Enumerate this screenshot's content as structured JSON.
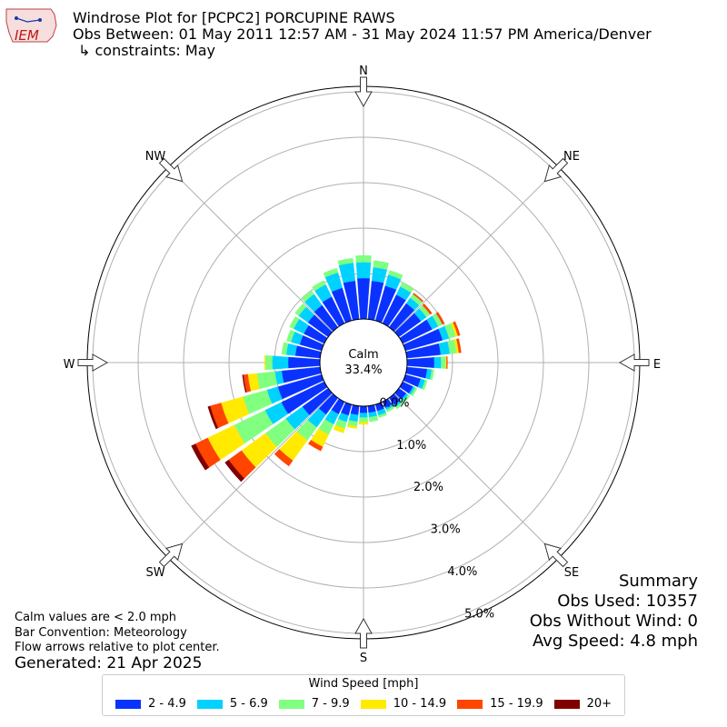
{
  "header": {
    "logo_text": "IEM",
    "title": "Windrose Plot for [PCPC2] PORCUPINE RAWS",
    "subtitle": "Obs Between: 01 May 2011 12:57 AM - 31 May 2024 11:57 PM America/Denver",
    "constraints": "↳ constraints: May"
  },
  "calm": {
    "label": "Calm",
    "value": "33.4%"
  },
  "notes": {
    "calm_def": "Calm values are < 2.0 mph",
    "bar_convention": "Bar Convention: Meteorology",
    "flow_arrows": "Flow arrows relative to plot center.",
    "generated": "Generated: 21 Apr 2025"
  },
  "summary": {
    "title": "Summary",
    "obs_used": "Obs Used: 10357",
    "obs_without_wind": "Obs Without Wind: 0",
    "avg_speed": "Avg Speed: 4.8 mph"
  },
  "legend": {
    "title": "Wind Speed [mph]",
    "items": [
      {
        "label": "2 - 4.9",
        "color": "#0a32ff"
      },
      {
        "label": "5 - 6.9",
        "color": "#00d2ff"
      },
      {
        "label": "7 - 9.9",
        "color": "#80ff80"
      },
      {
        "label": "10 - 14.9",
        "color": "#ffea00"
      },
      {
        "label": "15 - 19.9",
        "color": "#ff4500"
      },
      {
        "label": "20+",
        "color": "#800000"
      }
    ]
  },
  "chart_data": {
    "type": "windrose",
    "directions_deg": [
      0,
      10,
      20,
      30,
      40,
      50,
      60,
      70,
      80,
      90,
      100,
      110,
      120,
      130,
      140,
      150,
      160,
      170,
      180,
      190,
      200,
      210,
      220,
      230,
      240,
      250,
      260,
      270,
      280,
      290,
      300,
      310,
      320,
      330,
      340,
      350
    ],
    "compass_labels": [
      "N",
      "NE",
      "E",
      "SE",
      "S",
      "SW",
      "W",
      "NW"
    ],
    "radial_tick_labels": [
      "0.0%",
      "1.0%",
      "2.0%",
      "3.0%",
      "4.0%",
      "5.0%"
    ],
    "radial_max_percent": 5.0,
    "calm_percent": 33.4,
    "series": [
      {
        "name": "2 - 4.9",
        "values": [
          0.9,
          0.85,
          0.8,
          0.7,
          0.65,
          0.6,
          0.72,
          0.85,
          0.75,
          0.6,
          0.45,
          0.35,
          0.25,
          0.2,
          0.2,
          0.15,
          0.15,
          0.15,
          0.15,
          0.2,
          0.25,
          0.3,
          0.45,
          0.7,
          1.05,
          1.0,
          0.85,
          0.7,
          0.55,
          0.5,
          0.5,
          0.55,
          0.6,
          0.65,
          0.75,
          0.85
        ]
      },
      {
        "name": "5 - 6.9",
        "values": [
          0.35,
          0.3,
          0.25,
          0.2,
          0.15,
          0.15,
          0.15,
          0.15,
          0.2,
          0.15,
          0.1,
          0.1,
          0.05,
          0.05,
          0.05,
          0.05,
          0.1,
          0.1,
          0.1,
          0.15,
          0.15,
          0.25,
          0.35,
          0.45,
          0.4,
          0.25,
          0.15,
          0.35,
          0.2,
          0.2,
          0.25,
          0.25,
          0.3,
          0.3,
          0.35,
          0.4
        ]
      },
      {
        "name": "7 - 9.9",
        "values": [
          0.15,
          0.15,
          0.1,
          0.1,
          0.1,
          0.1,
          0.1,
          0.15,
          0.15,
          0.1,
          0.05,
          0.05,
          0.05,
          0.05,
          0.05,
          0.05,
          0.05,
          0.1,
          0.1,
          0.1,
          0.15,
          0.25,
          0.35,
          0.55,
          0.75,
          0.55,
          0.4,
          0.15,
          0.1,
          0.1,
          0.1,
          0.1,
          0.1,
          0.1,
          0.1,
          0.1
        ]
      },
      {
        "name": "10 - 14.9",
        "values": [
          0,
          0,
          0,
          0,
          0,
          0,
          0,
          0.05,
          0.05,
          0.02,
          0,
          0,
          0,
          0,
          0,
          0,
          0,
          0,
          0.05,
          0.05,
          0.1,
          0.3,
          0.55,
          0.65,
          0.65,
          0.5,
          0.2,
          0.02,
          0,
          0,
          0,
          0,
          0,
          0,
          0,
          0
        ]
      },
      {
        "name": "15 - 19.9",
        "values": [
          0,
          0,
          0,
          0,
          0.03,
          0.05,
          0.05,
          0.05,
          0.05,
          0.02,
          0,
          0,
          0,
          0,
          0,
          0,
          0,
          0,
          0,
          0,
          0,
          0.1,
          0.15,
          0.35,
          0.3,
          0.25,
          0.1,
          0,
          0,
          0,
          0,
          0,
          0,
          0,
          0,
          0
        ]
      },
      {
        "name": "20+",
        "values": [
          0,
          0,
          0,
          0,
          0,
          0,
          0,
          0,
          0,
          0,
          0,
          0,
          0,
          0,
          0,
          0,
          0,
          0,
          0,
          0,
          0,
          0,
          0,
          0.1,
          0.1,
          0.05,
          0.02,
          0,
          0,
          0,
          0,
          0,
          0,
          0,
          0,
          0
        ]
      }
    ]
  }
}
